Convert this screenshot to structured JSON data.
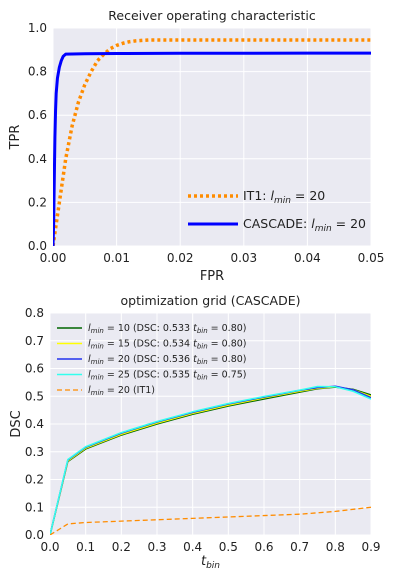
{
  "chart_data": [
    {
      "type": "line",
      "title": "Receiver operating characteristic",
      "xlabel": "FPR",
      "ylabel": "TPR",
      "xlim": [
        0.0,
        0.05
      ],
      "ylim": [
        0.0,
        1.0
      ],
      "xticks": [
        "0.00",
        "0.01",
        "0.02",
        "0.03",
        "0.04",
        "0.05"
      ],
      "yticks": [
        "0.0",
        "0.2",
        "0.4",
        "0.6",
        "0.8",
        "1.0"
      ],
      "grid": true,
      "legend_position": "bottom-right",
      "series": [
        {
          "name": "IT1: l_min = 20",
          "legend_prefix": "IT1: ",
          "legend_var": "l",
          "legend_sub": "min",
          "legend_suffix": " = 20",
          "color": "#ff8c00",
          "dash": "dotted",
          "x": [
            0.0,
            0.0005,
            0.001,
            0.0015,
            0.002,
            0.003,
            0.004,
            0.005,
            0.006,
            0.007,
            0.008,
            0.009,
            0.01,
            0.011,
            0.012,
            0.013,
            0.014,
            0.015,
            0.02,
            0.03,
            0.04,
            0.05
          ],
          "y": [
            0.0,
            0.1,
            0.2,
            0.3,
            0.4,
            0.55,
            0.66,
            0.74,
            0.8,
            0.85,
            0.88,
            0.905,
            0.92,
            0.93,
            0.937,
            0.941,
            0.943,
            0.945,
            0.945,
            0.945,
            0.945,
            0.945
          ]
        },
        {
          "name": "CASCADE: l_min = 20",
          "legend_prefix": "CASCADE: ",
          "legend_var": "l",
          "legend_sub": "min",
          "legend_suffix": " = 20",
          "color": "#0000ff",
          "dash": "solid",
          "x": [
            0.0,
            0.0001,
            0.0002,
            0.0003,
            0.0004,
            0.0005,
            0.0007,
            0.001,
            0.0013,
            0.0016,
            0.002,
            0.005,
            0.01,
            0.02,
            0.03,
            0.04,
            0.05
          ],
          "y": [
            0.0,
            0.1,
            0.3,
            0.5,
            0.62,
            0.7,
            0.77,
            0.82,
            0.85,
            0.87,
            0.88,
            0.882,
            0.883,
            0.884,
            0.884,
            0.885,
            0.885
          ]
        }
      ]
    },
    {
      "type": "line",
      "title": "optimization grid (CASCADE)",
      "xlabel_var": "t",
      "xlabel_sub": "bin",
      "ylabel": "DSC",
      "xlim": [
        0.0,
        0.9
      ],
      "ylim": [
        0.0,
        0.8
      ],
      "xticks": [
        "0.0",
        "0.1",
        "0.2",
        "0.3",
        "0.4",
        "0.5",
        "0.6",
        "0.7",
        "0.8",
        "0.9"
      ],
      "yticks": [
        "0.0",
        "0.1",
        "0.2",
        "0.3",
        "0.4",
        "0.5",
        "0.6",
        "0.7",
        "0.8"
      ],
      "grid": true,
      "legend_position": "top-left",
      "series": [
        {
          "name": "l_min = 10 (DSC: 0.533 t_bin = 0.80)",
          "legend_value": "= 10 (DSC: ",
          "legend_dsc": "0.533",
          "legend_tbin": "= 0.80)",
          "color": "#006400",
          "dash": "solid",
          "x": [
            0.0,
            0.05,
            0.1,
            0.2,
            0.3,
            0.4,
            0.5,
            0.6,
            0.7,
            0.75,
            0.8,
            0.85,
            0.9
          ],
          "y": [
            0.0,
            0.265,
            0.31,
            0.36,
            0.4,
            0.435,
            0.465,
            0.49,
            0.515,
            0.527,
            0.533,
            0.525,
            0.505
          ]
        },
        {
          "name": "l_min = 15 (DSC: 0.534 t_bin = 0.80)",
          "legend_value": "= 15 (DSC: ",
          "legend_dsc": "0.534",
          "legend_tbin": "= 0.80)",
          "color": "#ffff00",
          "dash": "solid",
          "x": [
            0.0,
            0.05,
            0.1,
            0.2,
            0.3,
            0.4,
            0.5,
            0.6,
            0.7,
            0.75,
            0.8,
            0.85,
            0.9
          ],
          "y": [
            0.0,
            0.267,
            0.313,
            0.363,
            0.403,
            0.438,
            0.468,
            0.494,
            0.518,
            0.529,
            0.534,
            0.523,
            0.5
          ]
        },
        {
          "name": "l_min = 20 (DSC: 0.536 t_bin = 0.80)",
          "legend_value": "= 20 (DSC: ",
          "legend_dsc": "0.536",
          "legend_tbin": "= 0.80)",
          "color": "#2233ee",
          "dash": "solid",
          "x": [
            0.0,
            0.05,
            0.1,
            0.2,
            0.3,
            0.4,
            0.5,
            0.6,
            0.7,
            0.75,
            0.8,
            0.85,
            0.9
          ],
          "y": [
            0.0,
            0.27,
            0.316,
            0.367,
            0.407,
            0.442,
            0.472,
            0.497,
            0.521,
            0.531,
            0.536,
            0.523,
            0.495
          ]
        },
        {
          "name": "l_min = 25 (DSC: 0.535 t_bin = 0.75)",
          "legend_value": "= 25 (DSC: ",
          "legend_dsc": "0.535",
          "legend_tbin": "= 0.75)",
          "color": "#33ffee",
          "dash": "solid",
          "x": [
            0.0,
            0.05,
            0.1,
            0.2,
            0.3,
            0.4,
            0.5,
            0.6,
            0.7,
            0.75,
            0.8,
            0.85,
            0.9
          ],
          "y": [
            0.0,
            0.272,
            0.318,
            0.369,
            0.409,
            0.444,
            0.474,
            0.499,
            0.522,
            0.535,
            0.534,
            0.518,
            0.49
          ]
        },
        {
          "name": "l_min = 20 (IT1)",
          "legend_value": "= 20 (IT1)",
          "color": "#ff8c00",
          "dash": "dashed",
          "x": [
            0.0,
            0.05,
            0.1,
            0.2,
            0.3,
            0.4,
            0.5,
            0.6,
            0.7,
            0.8,
            0.9
          ],
          "y": [
            0.0,
            0.04,
            0.045,
            0.05,
            0.055,
            0.06,
            0.065,
            0.07,
            0.075,
            0.085,
            0.1
          ]
        }
      ]
    }
  ]
}
